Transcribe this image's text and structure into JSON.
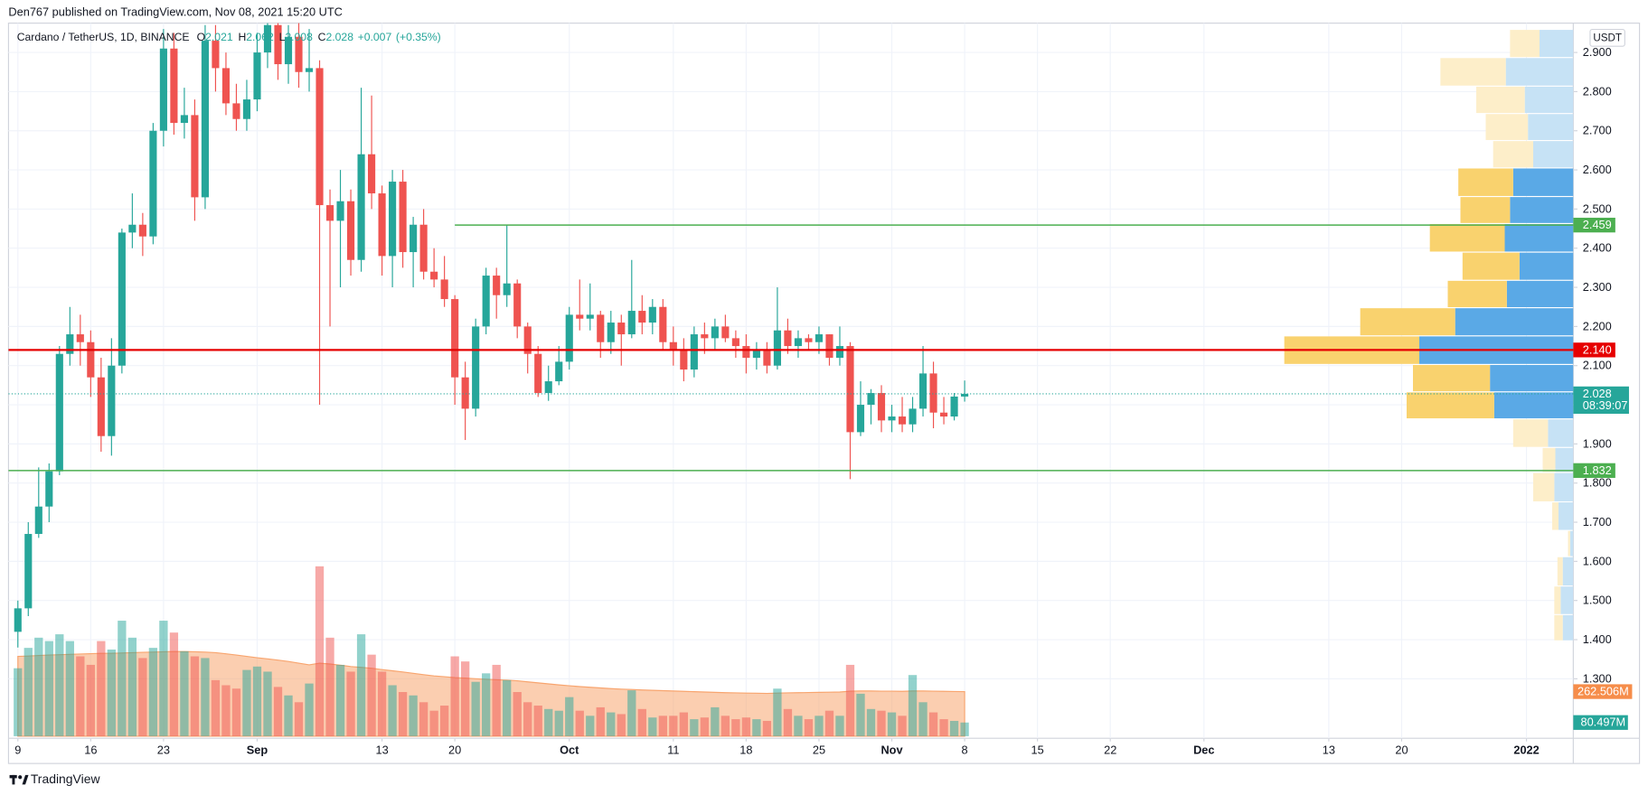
{
  "chart_data": {
    "type": "candlestick",
    "header": "Den767 published on TradingView.com, Nov 08, 2021 15:20 UTC",
    "symbol": "Cardano / TetherUS, 1D, BINANCE",
    "ohlc_labels": [
      "O",
      "H",
      "L",
      "C"
    ],
    "change": {
      "value": 0.007,
      "label": "+0.007"
    },
    "change_pct": {
      "value": 0.35,
      "label": "(+0.35%)"
    },
    "currency": "USDT",
    "countdown": "08:39:07",
    "footer_brand": "TradingView",
    "up_color": "#26a69a",
    "down_color": "#ef5350",
    "grid": true,
    "x": [
      0,
      1,
      2,
      3,
      4,
      5,
      6,
      7,
      8,
      9,
      10,
      11,
      12,
      13,
      14,
      15,
      16,
      17,
      18,
      19,
      20,
      21,
      22,
      23,
      24,
      25,
      26,
      27,
      28,
      29,
      30,
      31,
      32,
      33,
      34,
      35,
      36,
      37,
      38,
      39,
      40,
      41,
      42,
      43,
      44,
      45,
      46,
      47,
      48,
      49,
      50,
      51,
      52,
      53,
      54,
      55,
      56,
      57,
      58,
      59,
      60,
      61,
      62,
      63,
      64,
      65,
      66,
      67,
      68,
      69,
      70,
      71,
      72,
      73,
      74,
      75,
      76,
      77,
      78,
      79,
      80,
      81,
      82,
      83,
      84,
      85,
      86,
      87,
      88,
      89,
      90,
      91
    ],
    "open": [
      1.42,
      1.48,
      1.67,
      1.74,
      1.83,
      2.13,
      2.18,
      2.16,
      2.07,
      1.92,
      2.1,
      2.44,
      2.46,
      2.43,
      2.7,
      2.91,
      2.72,
      2.74,
      2.53,
      2.93,
      2.86,
      2.77,
      2.73,
      2.78,
      2.9,
      2.97,
      2.87,
      2.94,
      2.85,
      2.86,
      2.51,
      2.47,
      2.52,
      2.37,
      2.64,
      2.54,
      2.38,
      2.57,
      2.39,
      2.46,
      2.34,
      2.32,
      2.27,
      2.07,
      1.99,
      2.2,
      2.33,
      2.28,
      2.31,
      2.2,
      2.13,
      2.03,
      2.06,
      2.11,
      2.23,
      2.22,
      2.23,
      2.16,
      2.21,
      2.18,
      2.24,
      2.21,
      2.25,
      2.16,
      2.14,
      2.09,
      2.18,
      2.17,
      2.2,
      2.17,
      2.15,
      2.12,
      2.14,
      2.1,
      2.19,
      2.15,
      2.17,
      2.16,
      2.18,
      2.12,
      2.15,
      1.93,
      2.0,
      2.03,
      1.96,
      1.97,
      1.95,
      1.99,
      2.08,
      1.98,
      1.97,
      2.021
    ],
    "high": [
      1.5,
      1.7,
      1.84,
      1.85,
      2.15,
      2.25,
      2.23,
      2.19,
      2.12,
      2.17,
      2.45,
      2.54,
      2.49,
      2.72,
      2.96,
      2.95,
      2.81,
      2.78,
      2.97,
      2.97,
      2.9,
      2.82,
      2.83,
      2.95,
      3.1,
      3.0,
      2.97,
      2.99,
      2.96,
      2.88,
      2.55,
      2.6,
      2.55,
      2.81,
      2.79,
      2.56,
      2.6,
      2.6,
      2.48,
      2.5,
      2.4,
      2.38,
      2.28,
      2.11,
      2.22,
      2.35,
      2.35,
      2.46,
      2.32,
      2.21,
      2.15,
      2.1,
      2.15,
      2.25,
      2.32,
      2.31,
      2.24,
      2.24,
      2.23,
      2.37,
      2.28,
      2.27,
      2.27,
      2.2,
      2.17,
      2.2,
      2.21,
      2.22,
      2.23,
      2.19,
      2.18,
      2.16,
      2.16,
      2.3,
      2.22,
      2.19,
      2.18,
      2.2,
      2.18,
      2.2,
      2.16,
      2.06,
      2.04,
      2.05,
      2.0,
      2.02,
      2.02,
      2.15,
      2.11,
      2.02,
      2.03,
      2.062
    ],
    "low": [
      1.38,
      1.46,
      1.66,
      1.7,
      1.82,
      2.1,
      2.1,
      2.02,
      1.88,
      1.87,
      2.08,
      2.4,
      2.38,
      2.41,
      2.66,
      2.69,
      2.68,
      2.47,
      2.5,
      2.8,
      2.74,
      2.7,
      2.7,
      2.75,
      2.86,
      2.83,
      2.82,
      2.81,
      2.8,
      2.0,
      2.2,
      2.3,
      2.33,
      2.34,
      2.5,
      2.33,
      2.3,
      2.35,
      2.3,
      2.32,
      2.3,
      2.25,
      2.0,
      1.91,
      1.97,
      2.18,
      2.22,
      2.25,
      2.17,
      2.08,
      2.02,
      2.01,
      2.05,
      2.09,
      2.19,
      2.19,
      2.12,
      2.13,
      2.1,
      2.17,
      2.18,
      2.18,
      2.14,
      2.1,
      2.06,
      2.07,
      2.13,
      2.14,
      2.16,
      2.12,
      2.08,
      2.09,
      2.08,
      2.09,
      2.13,
      2.12,
      2.14,
      2.13,
      2.1,
      2.1,
      1.81,
      1.92,
      1.95,
      1.93,
      1.93,
      1.93,
      1.93,
      1.97,
      1.94,
      1.95,
      1.96,
      2.008
    ],
    "close": [
      1.48,
      1.67,
      1.74,
      1.83,
      2.13,
      2.18,
      2.16,
      2.07,
      1.92,
      2.1,
      2.44,
      2.46,
      2.43,
      2.7,
      2.91,
      2.72,
      2.74,
      2.53,
      2.93,
      2.86,
      2.77,
      2.73,
      2.78,
      2.9,
      2.97,
      2.87,
      2.94,
      2.85,
      2.86,
      2.51,
      2.47,
      2.52,
      2.37,
      2.64,
      2.54,
      2.38,
      2.57,
      2.39,
      2.46,
      2.34,
      2.32,
      2.27,
      2.07,
      1.99,
      2.2,
      2.33,
      2.28,
      2.31,
      2.2,
      2.13,
      2.03,
      2.06,
      2.11,
      2.23,
      2.22,
      2.23,
      2.16,
      2.21,
      2.18,
      2.24,
      2.21,
      2.25,
      2.16,
      2.14,
      2.09,
      2.18,
      2.17,
      2.2,
      2.17,
      2.15,
      2.12,
      2.14,
      2.1,
      2.19,
      2.15,
      2.17,
      2.16,
      2.18,
      2.12,
      2.15,
      1.93,
      2.0,
      2.03,
      1.96,
      1.97,
      1.95,
      1.99,
      2.08,
      1.98,
      1.97,
      2.021,
      2.028
    ],
    "volume": [
      400,
      520,
      580,
      560,
      600,
      560,
      470,
      420,
      560,
      510,
      680,
      580,
      460,
      520,
      680,
      610,
      500,
      470,
      460,
      330,
      300,
      280,
      390,
      410,
      380,
      290,
      240,
      200,
      310,
      1000,
      580,
      420,
      380,
      600,
      480,
      380,
      300,
      260,
      240,
      200,
      150,
      180,
      470,
      440,
      320,
      370,
      420,
      330,
      260,
      200,
      180,
      160,
      150,
      230,
      150,
      120,
      170,
      140,
      130,
      270,
      160,
      110,
      120,
      120,
      140,
      100,
      110,
      170,
      120,
      100,
      110,
      100,
      90,
      280,
      160,
      120,
      100,
      120,
      150,
      120,
      420,
      250,
      160,
      150,
      140,
      120,
      360,
      200,
      140,
      100,
      90,
      80.497
    ],
    "volume_last_label": "80.497M",
    "volume_ma": {
      "values": [
        470,
        472,
        475,
        478,
        480,
        482,
        484,
        486,
        488,
        488,
        490,
        492,
        494,
        495,
        497,
        498,
        498,
        497,
        495,
        492,
        485,
        478,
        470,
        462,
        455,
        448,
        440,
        430,
        420,
        430,
        425,
        418,
        410,
        405,
        400,
        392,
        385,
        378,
        370,
        362,
        355,
        350,
        345,
        342,
        338,
        335,
        332,
        330,
        326,
        320,
        314,
        308,
        302,
        297,
        292,
        288,
        284,
        280,
        277,
        275,
        272,
        270,
        268,
        266,
        264,
        262,
        260,
        258,
        256,
        255,
        254,
        253,
        252,
        254,
        255,
        256,
        257,
        258,
        259,
        260,
        265,
        266,
        266,
        265,
        265,
        264,
        266,
        266,
        265,
        264,
        263,
        262.506
      ],
      "color": "#f8a56f",
      "last_label": "262.506M"
    },
    "volume_lim": [
      0,
      1150
    ],
    "xlim": [
      -0.9,
      149.5
    ],
    "xticks": [
      {
        "value": 0,
        "label": "9"
      },
      {
        "value": 7,
        "label": "16"
      },
      {
        "value": 14,
        "label": "23"
      },
      {
        "value": 23,
        "label": "Sep"
      },
      {
        "value": 35,
        "label": "13"
      },
      {
        "value": 42,
        "label": "20"
      },
      {
        "value": 53,
        "label": "Oct"
      },
      {
        "value": 63,
        "label": "11"
      },
      {
        "value": 70,
        "label": "18"
      },
      {
        "value": 77,
        "label": "25"
      },
      {
        "value": 84,
        "label": "Nov"
      },
      {
        "value": 91,
        "label": "8"
      },
      {
        "value": 98,
        "label": "15"
      },
      {
        "value": 105,
        "label": "22"
      },
      {
        "value": 114,
        "label": "Dec"
      },
      {
        "value": 126,
        "label": "13"
      },
      {
        "value": 133,
        "label": "20"
      },
      {
        "value": 145,
        "label": "2022"
      }
    ],
    "ylim": [
      1.148,
      2.975
    ],
    "yticks": [
      {
        "value": 2.9,
        "label": "2.900"
      },
      {
        "value": 2.8,
        "label": "2.800"
      },
      {
        "value": 2.7,
        "label": "2.700"
      },
      {
        "value": 2.6,
        "label": "2.600"
      },
      {
        "value": 2.5,
        "label": "2.500"
      },
      {
        "value": 2.4,
        "label": "2.400"
      },
      {
        "value": 2.3,
        "label": "2.300"
      },
      {
        "value": 2.2,
        "label": "2.200"
      },
      {
        "value": 2.1,
        "label": "2.100"
      },
      {
        "value": 2.0,
        "label": "2.000"
      },
      {
        "value": 1.9,
        "label": "1.900"
      },
      {
        "value": 1.8,
        "label": "1.800"
      },
      {
        "value": 1.7,
        "label": "1.700"
      },
      {
        "value": 1.6,
        "label": "1.600"
      },
      {
        "value": 1.5,
        "label": "1.500"
      },
      {
        "value": 1.4,
        "label": "1.400"
      },
      {
        "value": 1.3,
        "label": "1.300"
      }
    ],
    "levels": [
      {
        "value": 2.459,
        "label": "2.459",
        "color": "#4caf50",
        "x_start": 42
      },
      {
        "value": 2.14,
        "label": "2.140",
        "color": "#e60000"
      },
      {
        "value": 1.832,
        "label": "1.832",
        "color": "#4caf50"
      }
    ],
    "volume_profile": {
      "up_color": "#5aa9e6",
      "down_color": "#f9d26e",
      "up_color_light": "#c6e2f5",
      "down_color_light": "#fdeec9",
      "value_area": [
        1.964,
        2.605
      ],
      "rows": [
        {
          "range": [
            2.887,
            2.959
          ],
          "up": 32,
          "down": 28
        },
        {
          "range": [
            2.814,
            2.887
          ],
          "up": 64,
          "down": 62
        },
        {
          "range": [
            2.744,
            2.814
          ],
          "up": 46,
          "down": 46
        },
        {
          "range": [
            2.675,
            2.744
          ],
          "up": 43,
          "down": 40
        },
        {
          "range": [
            2.605,
            2.675
          ],
          "up": 38,
          "down": 38
        },
        {
          "range": [
            2.532,
            2.605
          ],
          "up": 57,
          "down": 52
        },
        {
          "range": [
            2.463,
            2.532
          ],
          "up": 60,
          "down": 47
        },
        {
          "range": [
            2.39,
            2.463
          ],
          "up": 65,
          "down": 71
        },
        {
          "range": [
            2.318,
            2.39
          ],
          "up": 51,
          "down": 54
        },
        {
          "range": [
            2.248,
            2.318
          ],
          "up": 63,
          "down": 56
        },
        {
          "range": [
            2.176,
            2.248
          ],
          "up": 112,
          "down": 90
        },
        {
          "range": [
            2.103,
            2.176
          ],
          "up": 146,
          "down": 128
        },
        {
          "range": [
            2.033,
            2.103
          ],
          "up": 79,
          "down": 73
        },
        {
          "range": [
            1.964,
            2.033
          ],
          "up": 75,
          "down": 83
        },
        {
          "range": [
            1.891,
            1.964
          ],
          "up": 24,
          "down": 33
        },
        {
          "range": [
            1.827,
            1.891
          ],
          "up": 17,
          "down": 12
        },
        {
          "range": [
            1.752,
            1.827
          ],
          "up": 18,
          "down": 20
        },
        {
          "range": [
            1.679,
            1.752
          ],
          "up": 14,
          "down": 6
        },
        {
          "range": [
            1.612,
            1.679
          ],
          "up": 3,
          "down": 2
        },
        {
          "range": [
            1.537,
            1.612
          ],
          "up": 10,
          "down": 5
        },
        {
          "range": [
            1.464,
            1.537
          ],
          "up": 12,
          "down": 6
        },
        {
          "range": [
            1.397,
            1.464
          ],
          "up": 10,
          "down": 8
        }
      ]
    }
  }
}
